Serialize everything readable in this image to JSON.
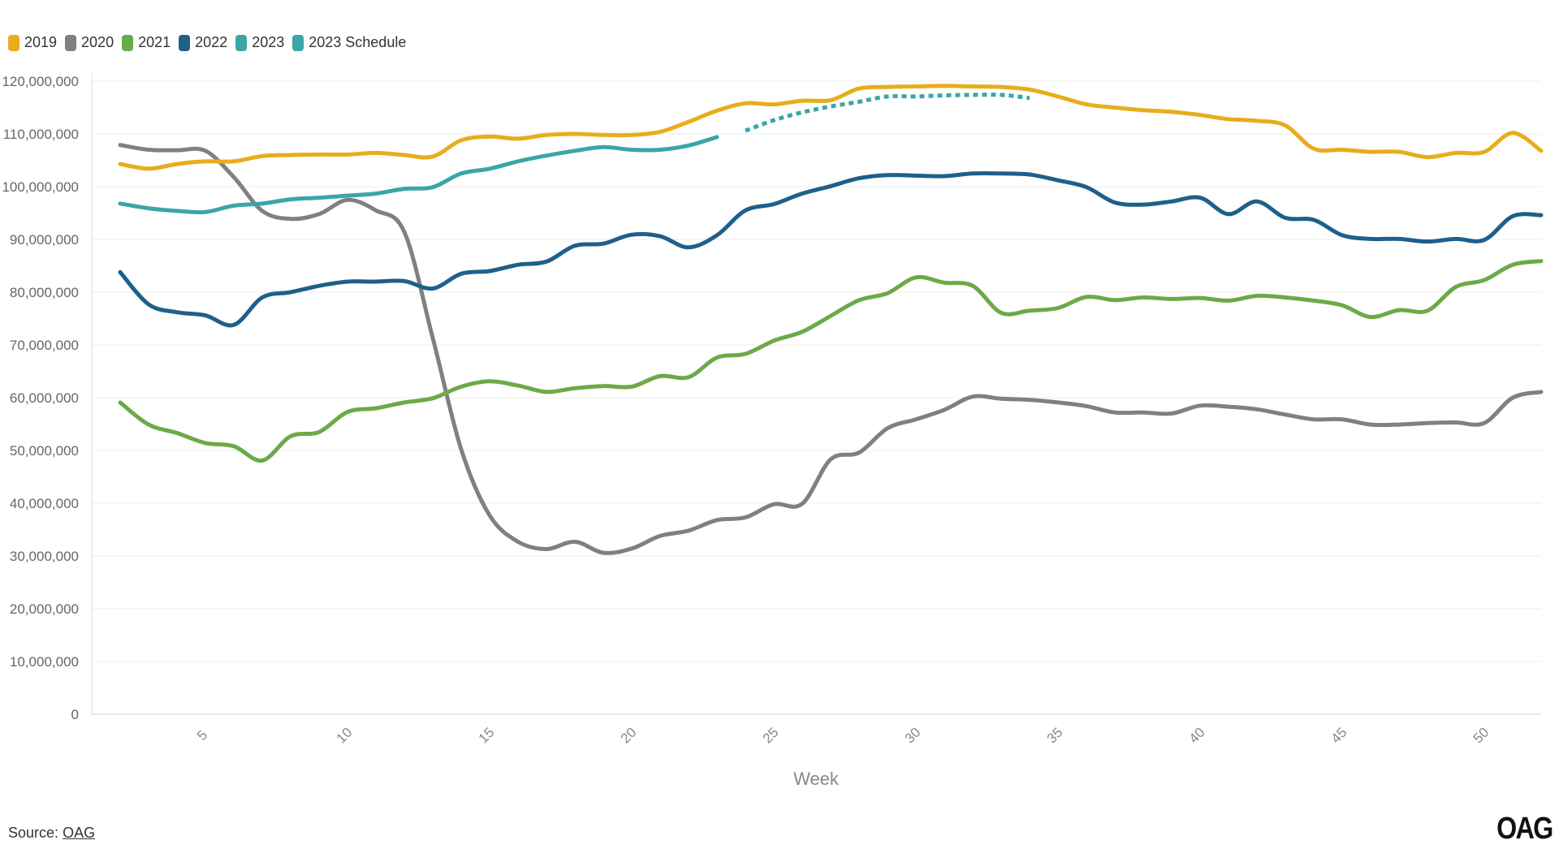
{
  "source": {
    "label": "Source:",
    "link_text": "OAG"
  },
  "logo": {
    "text": "OAG"
  },
  "chart_data": {
    "type": "line",
    "title": "",
    "xlabel": "Week",
    "ylabel": "",
    "xlim": [
      1,
      52
    ],
    "ylim": [
      0,
      120000000
    ],
    "y_ticks": [
      0,
      10000000,
      20000000,
      30000000,
      40000000,
      50000000,
      60000000,
      70000000,
      80000000,
      90000000,
      100000000,
      110000000,
      120000000
    ],
    "y_tick_labels": [
      "0",
      "10,000,000",
      "20,000,000",
      "30,000,000",
      "40,000,000",
      "50,000,000",
      "60,000,000",
      "70,000,000",
      "80,000,000",
      "90,000,000",
      "100,000,000",
      "110,000,000",
      "120,000,000"
    ],
    "x_ticks": [
      5,
      10,
      15,
      20,
      25,
      30,
      35,
      40,
      45,
      50
    ],
    "grid": true,
    "legend_position": "top-left",
    "series": [
      {
        "name": "2019",
        "color": "#E8AD1C",
        "style": "solid",
        "x": [
          2,
          3,
          4,
          5,
          6,
          7,
          8,
          9,
          10,
          11,
          12,
          13,
          14,
          15,
          16,
          17,
          18,
          19,
          20,
          21,
          22,
          23,
          24,
          25,
          26,
          27,
          28,
          29,
          30,
          31,
          32,
          33,
          34,
          35,
          36,
          37,
          38,
          39,
          40,
          41,
          42,
          43,
          44,
          45,
          46,
          47,
          48,
          49,
          50,
          51,
          52
        ],
        "y": [
          104.3,
          103.4,
          104.3,
          104.8,
          104.8,
          105.8,
          106,
          106.1,
          106.1,
          106.4,
          106,
          105.7,
          108.8,
          109.5,
          109.1,
          109.8,
          110,
          109.8,
          109.8,
          110.4,
          112.3,
          114.4,
          115.8,
          115.6,
          116.3,
          116.4,
          118.6,
          118.9,
          119,
          119.1,
          119,
          118.9,
          118.4,
          117.1,
          115.6,
          115,
          114.5,
          114.2,
          113.6,
          112.8,
          112.5,
          111.6,
          107.2,
          107,
          106.6,
          106.6,
          105.6,
          106.4,
          106.6,
          110.2,
          106.8
        ]
      },
      {
        "name": "2020",
        "color": "#808080",
        "style": "solid",
        "x": [
          2,
          3,
          4,
          5,
          6,
          7,
          8,
          9,
          10,
          11,
          12,
          13,
          14,
          15,
          16,
          17,
          18,
          19,
          20,
          21,
          22,
          23,
          24,
          25,
          26,
          27,
          28,
          29,
          30,
          31,
          32,
          33,
          34,
          35,
          36,
          37,
          38,
          39,
          40,
          41,
          42,
          43,
          44,
          45,
          46,
          47,
          48,
          49,
          50,
          51,
          52
        ],
        "y": [
          107.9,
          107,
          106.9,
          106.8,
          101.8,
          95.4,
          93.9,
          94.8,
          97.5,
          95.5,
          91.4,
          71.3,
          50.2,
          37.7,
          32.7,
          31.3,
          32.7,
          30.6,
          31.4,
          33.8,
          34.8,
          36.8,
          37.3,
          39.8,
          39.9,
          48.3,
          49.6,
          54.2,
          55.9,
          57.7,
          60.2,
          59.8,
          59.6,
          59.1,
          58.4,
          57.2,
          57.2,
          57,
          58.5,
          58.3,
          57.8,
          56.8,
          55.9,
          55.9,
          54.9,
          54.9,
          55.2,
          55.3,
          55.2,
          60,
          61.1
        ]
      },
      {
        "name": "2021",
        "color": "#6BAA48",
        "style": "solid",
        "x": [
          2,
          3,
          4,
          5,
          6,
          7,
          8,
          9,
          10,
          11,
          12,
          13,
          14,
          15,
          16,
          17,
          18,
          19,
          20,
          21,
          22,
          23,
          24,
          25,
          26,
          27,
          28,
          29,
          30,
          31,
          32,
          33,
          34,
          35,
          36,
          37,
          38,
          39,
          40,
          41,
          42,
          43,
          44,
          45,
          46,
          47,
          48,
          49,
          50,
          51,
          52
        ],
        "y": [
          59.1,
          54.9,
          53.3,
          51.4,
          50.8,
          48.1,
          52.7,
          53.5,
          57.3,
          58,
          59.1,
          59.9,
          62.1,
          63.1,
          62.3,
          61.1,
          61.8,
          62.2,
          62.1,
          64.1,
          63.9,
          67.6,
          68.3,
          70.8,
          72.5,
          75.5,
          78.5,
          79.8,
          82.8,
          81.8,
          81.2,
          76.1,
          76.5,
          77,
          79.1,
          78.5,
          79,
          78.7,
          78.9,
          78.4,
          79.3,
          79,
          78.4,
          77.5,
          75.3,
          76.6,
          76.5,
          81,
          82.3,
          85.2,
          85.9
        ]
      },
      {
        "name": "2022",
        "color": "#1F5F8B",
        "style": "solid",
        "x": [
          2,
          3,
          4,
          5,
          6,
          7,
          8,
          9,
          10,
          11,
          12,
          13,
          14,
          15,
          16,
          17,
          18,
          19,
          20,
          21,
          22,
          23,
          24,
          25,
          26,
          27,
          28,
          29,
          30,
          31,
          32,
          33,
          34,
          35,
          36,
          37,
          38,
          39,
          40,
          41,
          42,
          43,
          44,
          45,
          46,
          47,
          48,
          49,
          50,
          51,
          52
        ],
        "y": [
          83.8,
          77.7,
          76.2,
          75.6,
          73.8,
          79,
          80,
          81.2,
          82,
          82,
          82.1,
          80.7,
          83.5,
          84,
          85.2,
          85.8,
          88.8,
          89.2,
          90.9,
          90.6,
          88.5,
          90.8,
          95.5,
          96.7,
          98.7,
          100.1,
          101.6,
          102.2,
          102.1,
          102,
          102.5,
          102.5,
          102.3,
          101.2,
          99.9,
          97,
          96.6,
          97.2,
          97.9,
          94.8,
          97.2,
          94.1,
          93.7,
          90.8,
          90.1,
          90.1,
          89.6,
          90.1,
          89.9,
          94.4,
          94.6
        ]
      },
      {
        "name": "2023",
        "color": "#3AA6A6",
        "style": "solid",
        "x": [
          2,
          3,
          4,
          5,
          6,
          7,
          8,
          9,
          10,
          11,
          12,
          13,
          14,
          15,
          16,
          17,
          18,
          19,
          20,
          21,
          22,
          23
        ],
        "y": [
          96.8,
          95.9,
          95.4,
          95.2,
          96.4,
          96.8,
          97.6,
          97.9,
          98.3,
          98.7,
          99.6,
          99.9,
          102.5,
          103.4,
          104.8,
          105.9,
          106.8,
          107.5,
          107,
          107,
          107.8,
          109.4
        ]
      },
      {
        "name": "2023 Schedule",
        "color": "#3AA6A6",
        "style": "dotted",
        "x": [
          24,
          25,
          26,
          27,
          28,
          29,
          30,
          31,
          32,
          33,
          34
        ],
        "y": [
          110.6,
          112.6,
          114.1,
          115.2,
          116.1,
          117.1,
          117.1,
          117.3,
          117.4,
          117.4,
          116.8
        ]
      }
    ]
  }
}
